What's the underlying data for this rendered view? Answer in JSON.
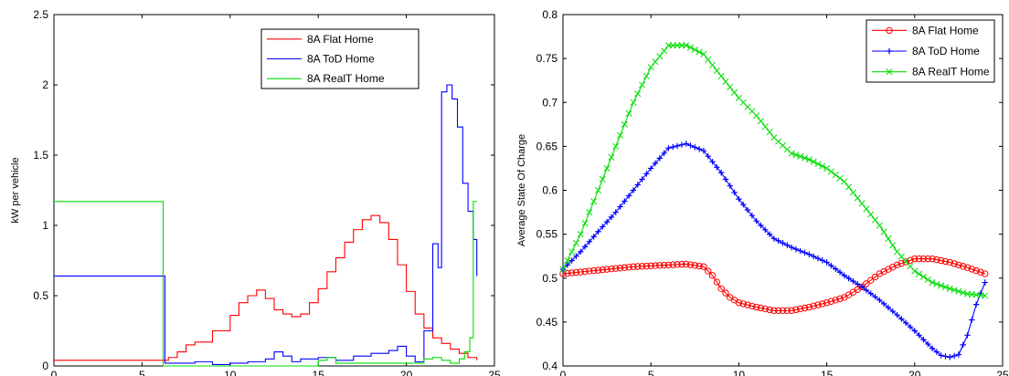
{
  "chart_data": [
    {
      "type": "line",
      "title": "",
      "xlabel": "",
      "ylabel": "kW per vehicle",
      "xlim": [
        0,
        25
      ],
      "ylim": [
        0,
        2.5
      ],
      "xticks": [
        "0",
        "5",
        "10",
        "15",
        "20",
        "25"
      ],
      "yticks": [
        "0",
        "0.5",
        "1",
        "1.5",
        "2",
        "2.5"
      ],
      "grid": false,
      "legend_position": "top-right",
      "step": true,
      "series": [
        {
          "name": "8A Flat Home",
          "color": "#ff0000",
          "x": [
            0,
            6,
            6.5,
            7,
            7.5,
            8,
            9,
            10,
            10.5,
            11,
            11.5,
            12,
            12.5,
            13,
            13.5,
            14,
            14.5,
            15,
            15.5,
            16,
            16.5,
            17,
            17.5,
            18,
            18.5,
            19,
            19.5,
            20,
            20.5,
            21,
            21.5,
            22,
            22.5,
            23,
            23.5,
            24
          ],
          "y": [
            0.04,
            0.04,
            0.06,
            0.1,
            0.15,
            0.17,
            0.25,
            0.36,
            0.45,
            0.5,
            0.54,
            0.48,
            0.4,
            0.37,
            0.35,
            0.37,
            0.45,
            0.55,
            0.67,
            0.77,
            0.88,
            0.97,
            1.04,
            1.07,
            1.02,
            0.9,
            0.72,
            0.53,
            0.37,
            0.27,
            0.2,
            0.16,
            0.12,
            0.09,
            0.06,
            0.04
          ]
        },
        {
          "name": "8A ToD Home",
          "color": "#0000ff",
          "x": [
            0,
            6,
            6.3,
            7,
            8,
            9,
            10,
            11,
            12,
            12.5,
            13,
            13.5,
            14,
            15,
            16,
            17,
            18,
            19,
            19.5,
            20,
            20.5,
            21,
            21.5,
            21.8,
            22,
            22.3,
            22.6,
            22.9,
            23.2,
            23.5,
            23.8,
            24
          ],
          "y": [
            0.64,
            0.64,
            0.02,
            0.02,
            0.03,
            0.01,
            0.02,
            0.03,
            0.05,
            0.1,
            0.07,
            0.03,
            0.05,
            0.06,
            0.04,
            0.07,
            0.09,
            0.11,
            0.14,
            0.07,
            0.03,
            0.25,
            0.87,
            0.7,
            1.95,
            2.0,
            1.9,
            1.7,
            1.3,
            1.1,
            0.9,
            0.64
          ]
        },
        {
          "name": "8A RealT Home",
          "color": "#00dd00",
          "x": [
            0,
            6,
            6.2,
            14,
            15,
            15.5,
            16,
            20.5,
            21,
            21.5,
            22,
            22.5,
            23,
            23.3,
            23.6,
            23.8,
            24
          ],
          "y": [
            1.17,
            1.17,
            0.0,
            0.0,
            0.04,
            0.06,
            0.02,
            0.02,
            0.05,
            0.06,
            0.04,
            0.02,
            0.05,
            0.1,
            0.2,
            1.17,
            1.17
          ]
        }
      ]
    },
    {
      "type": "line",
      "title": "",
      "xlabel": "",
      "ylabel": "Average State Of Charge",
      "xlim": [
        0,
        25
      ],
      "ylim": [
        0.4,
        0.8
      ],
      "xticks": [
        "0",
        "5",
        "10",
        "15",
        "20",
        "25"
      ],
      "yticks": [
        "0.4",
        "0.45",
        "0.5",
        "0.55",
        "0.6",
        "0.65",
        "0.7",
        "0.75",
        "0.8"
      ],
      "grid": false,
      "legend_position": "top-right",
      "series": [
        {
          "name": "8A Flat Home",
          "color": "#ff0000",
          "marker": "circle",
          "x": [
            0,
            1,
            2,
            3,
            4,
            5,
            6,
            7,
            8,
            8.5,
            9,
            9.5,
            10,
            11,
            12,
            13,
            14,
            15,
            16,
            17,
            18,
            19,
            20,
            21,
            22,
            23,
            24
          ],
          "y": [
            0.505,
            0.507,
            0.509,
            0.511,
            0.513,
            0.514,
            0.515,
            0.516,
            0.513,
            0.503,
            0.488,
            0.478,
            0.472,
            0.467,
            0.463,
            0.463,
            0.467,
            0.472,
            0.478,
            0.49,
            0.505,
            0.515,
            0.522,
            0.522,
            0.518,
            0.512,
            0.505
          ]
        },
        {
          "name": "8A ToD Home",
          "color": "#0000ff",
          "marker": "plus",
          "x": [
            0,
            1,
            2,
            3,
            4,
            5,
            6,
            7,
            8,
            9,
            10,
            11,
            12,
            13,
            14,
            15,
            16,
            17,
            18,
            19,
            20,
            21,
            21.5,
            22,
            22.5,
            23,
            23.5,
            24
          ],
          "y": [
            0.51,
            0.53,
            0.553,
            0.575,
            0.6,
            0.625,
            0.648,
            0.653,
            0.645,
            0.62,
            0.59,
            0.565,
            0.545,
            0.535,
            0.527,
            0.518,
            0.503,
            0.49,
            0.475,
            0.458,
            0.44,
            0.42,
            0.412,
            0.41,
            0.413,
            0.435,
            0.47,
            0.495
          ]
        },
        {
          "name": "8A RealT Home",
          "color": "#00dd00",
          "marker": "x",
          "x": [
            0,
            1,
            2,
            3,
            4,
            5,
            6,
            7,
            8,
            9,
            10,
            11,
            12,
            13,
            14,
            15,
            16,
            17,
            18,
            19,
            20,
            21,
            22,
            23,
            24
          ],
          "y": [
            0.51,
            0.55,
            0.6,
            0.65,
            0.7,
            0.74,
            0.765,
            0.765,
            0.755,
            0.73,
            0.705,
            0.685,
            0.66,
            0.642,
            0.635,
            0.625,
            0.61,
            0.585,
            0.56,
            0.53,
            0.508,
            0.495,
            0.488,
            0.482,
            0.48
          ]
        }
      ]
    }
  ]
}
